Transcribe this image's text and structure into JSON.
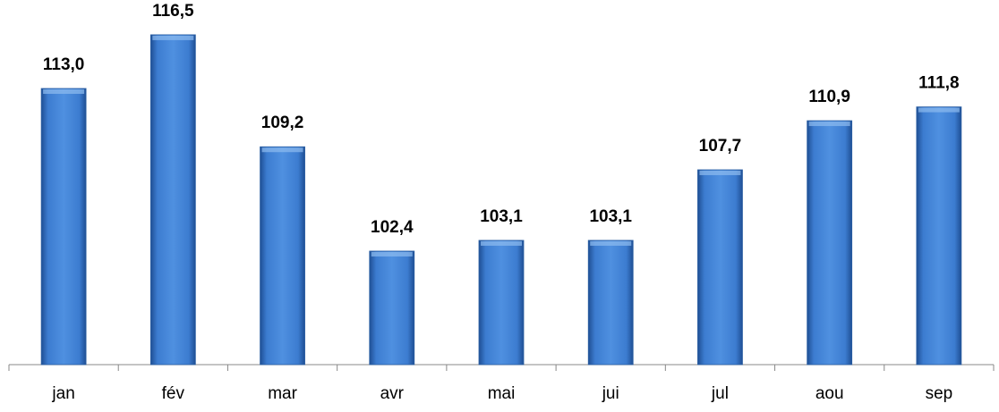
{
  "chart_data": {
    "type": "bar",
    "categories": [
      "jan",
      "fév",
      "mar",
      "avr",
      "mai",
      "jui",
      "jul",
      "aou",
      "sep"
    ],
    "values": [
      113.0,
      116.5,
      109.2,
      102.4,
      103.1,
      103.1,
      107.7,
      110.9,
      111.8
    ],
    "value_labels": [
      "113,0",
      "116,5",
      "109,2",
      "102,4",
      "103,1",
      "103,1",
      "107,7",
      "110,9",
      "111,8"
    ],
    "color": "#3a78c8",
    "ylim": [
      95,
      119
    ]
  }
}
